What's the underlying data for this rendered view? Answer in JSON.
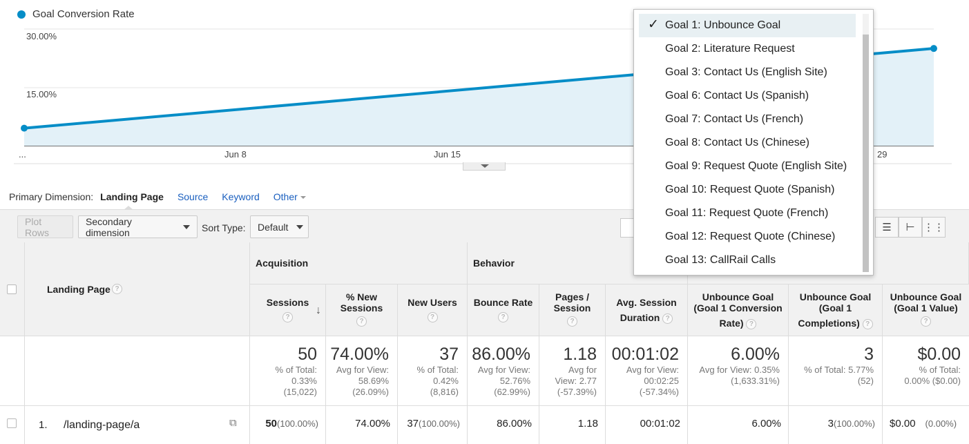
{
  "colors": {
    "accent": "#058dc7",
    "area_fill": "#e3f1f8",
    "link": "#1a5fbf",
    "header_bg": "#f1f1f1"
  },
  "chart_data": {
    "type": "area",
    "legend": "Goal Conversion Rate",
    "y_ticks": [
      "30.00%",
      "15.00%"
    ],
    "x_ticks": [
      "...",
      "Jun 8",
      "Jun 15",
      "29"
    ],
    "ylim": [
      0,
      30
    ],
    "series": [
      {
        "name": "Goal Conversion Rate",
        "points": [
          [
            0,
            4.5
          ],
          [
            1,
            25.0
          ]
        ]
      }
    ]
  },
  "primary_dimension": {
    "label": "Primary Dimension:",
    "active": "Landing Page",
    "links": [
      "Source",
      "Keyword",
      "Other"
    ]
  },
  "toolbar": {
    "plot_rows": "Plot Rows",
    "secondary_dimension": "Secondary dimension",
    "sort_type_label": "Sort Type:",
    "sort_type_value": "Default"
  },
  "table": {
    "landing_page_header": "Landing Page",
    "group_acquisition": "Acquisition",
    "group_behavior": "Behavior",
    "columns": [
      {
        "l1": "Sessions",
        "l2": ""
      },
      {
        "l1": "% New",
        "l2": "Sessions"
      },
      {
        "l1": "New Users",
        "l2": ""
      },
      {
        "l1": "Bounce Rate",
        "l2": ""
      },
      {
        "l1": "Pages /",
        "l2": "Session"
      },
      {
        "l1": "Avg. Session",
        "l2": "Duration"
      },
      {
        "l1": "Unbounce Goal",
        "l2": "(Goal 1 Conversion",
        "l3": "Rate)"
      },
      {
        "l1": "Unbounce Goal",
        "l2": "(Goal 1",
        "l3": "Completions)"
      },
      {
        "l1": "Unbounce Goal",
        "l2": "(Goal 1 Value)"
      }
    ],
    "totals": [
      {
        "big": "50",
        "s1": "% of Total:",
        "s2": "0.33%",
        "s3": "(15,022)"
      },
      {
        "big": "74.00%",
        "s1": "Avg for View:",
        "s2": "58.69%",
        "s3": "(26.09%)"
      },
      {
        "big": "37",
        "s1": "% of Total:",
        "s2": "0.42%",
        "s3": "(8,816)"
      },
      {
        "big": "86.00%",
        "s1": "Avg for View:",
        "s2": "52.76%",
        "s3": "(62.99%)"
      },
      {
        "big": "1.18",
        "s1": "Avg for",
        "s2": "View: 2.77",
        "s3": "(-57.39%)"
      },
      {
        "big": "00:01:02",
        "s1": "Avg for View:",
        "s2": "00:02:25",
        "s3": "(-57.34%)"
      },
      {
        "big": "6.00%",
        "s1": "Avg for View: 0.35%",
        "s2": "(1,633.31%)",
        "s3": ""
      },
      {
        "big": "3",
        "s1": "% of Total: 5.77%",
        "s2": "(52)",
        "s3": ""
      },
      {
        "big": "$0.00",
        "s1": "% of Total:",
        "s2": "0.00% ($0.00)",
        "s3": ""
      }
    ],
    "row1": {
      "index": "1.",
      "page": "/landing-page/a",
      "cells": [
        {
          "v": "50",
          "p": "(100.00%)"
        },
        {
          "v": "74.00%",
          "p": ""
        },
        {
          "v": "37",
          "p": "(100.00%)"
        },
        {
          "v": "86.00%",
          "p": ""
        },
        {
          "v": "1.18",
          "p": ""
        },
        {
          "v": "00:01:02",
          "p": ""
        },
        {
          "v": "6.00%",
          "p": ""
        },
        {
          "v": "3",
          "p": "(100.00%)"
        },
        {
          "v": "$0.00",
          "p": "(0.00%)"
        }
      ]
    }
  },
  "goal_dropdown": {
    "items": [
      "Goal 1: Unbounce Goal",
      "Goal 2: Literature Request",
      "Goal 3: Contact Us (English Site)",
      "Goal 6: Contact Us (Spanish)",
      "Goal 7: Contact Us (French)",
      "Goal 8: Contact Us (Chinese)",
      "Goal 9: Request Quote (English Site)",
      "Goal 10: Request Quote (Spanish)",
      "Goal 11: Request Quote (French)",
      "Goal 12: Request Quote (Chinese)",
      "Goal 13: CallRail Calls"
    ],
    "selected_index": 0,
    "check_glyph": "✓"
  }
}
